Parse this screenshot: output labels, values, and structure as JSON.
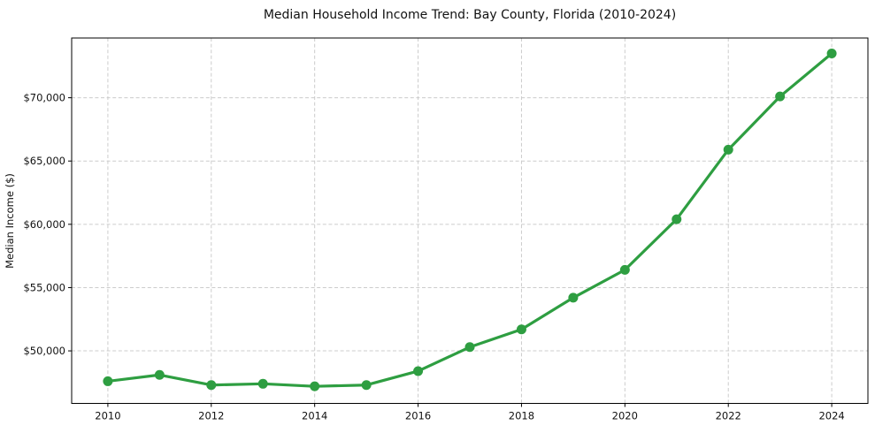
{
  "chart_data": {
    "type": "line",
    "title": "Median Household Income Trend: Bay County, Florida (2010-2024)",
    "xlabel": "",
    "ylabel": "Median Income ($)",
    "x": [
      2010,
      2011,
      2012,
      2013,
      2014,
      2015,
      2016,
      2017,
      2018,
      2019,
      2020,
      2021,
      2022,
      2023,
      2024
    ],
    "series": [
      {
        "name": "Median Household Income",
        "values": [
          47600,
          48100,
          47300,
          47400,
          47200,
          47300,
          48400,
          50300,
          51700,
          54200,
          56400,
          60400,
          65900,
          70100,
          73500
        ]
      }
    ],
    "xlim": [
      2009.3,
      2024.7
    ],
    "ylim": [
      45850,
      74720
    ],
    "xticks": [
      2010,
      2012,
      2014,
      2016,
      2018,
      2020,
      2022,
      2024
    ],
    "xtick_labels": [
      "2010",
      "2012",
      "2014",
      "2016",
      "2018",
      "2020",
      "2022",
      "2024"
    ],
    "yticks": [
      50000,
      55000,
      60000,
      65000,
      70000
    ],
    "ytick_labels": [
      "$50,000",
      "$55,000",
      "$60,000",
      "$65,000",
      "$70,000"
    ],
    "grid": true,
    "legend": "none",
    "line_color": "#2e9e41",
    "marker": "circle",
    "marker_radius": 5.5,
    "line_width": 3.2,
    "grid_color": "#cccccc",
    "frame_color": "#000000",
    "text_color": "#111111",
    "background_color": "#ffffff"
  }
}
